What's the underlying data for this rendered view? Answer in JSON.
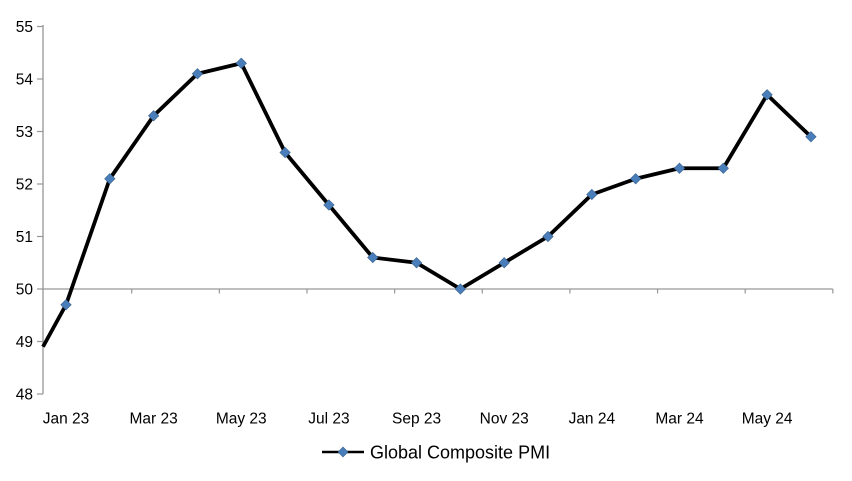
{
  "chart_data": {
    "type": "line",
    "title": "",
    "background": "#FFFFFF",
    "grid": "off",
    "legend": {
      "label": "Global Composite PMI",
      "position": "bottom-center",
      "marker_shape": "diamond",
      "marker_color": "#4A7EBB",
      "line_color": "#000000"
    },
    "x_axis": {
      "categories": [
        "Jan 23",
        "Feb 23",
        "Mar 23",
        "Apr 23",
        "May 23",
        "Jun 23",
        "Jul 23",
        "Aug 23",
        "Sep 23",
        "Oct 23",
        "Nov 23",
        "Dec 23",
        "Jan 24",
        "Feb 24",
        "Mar 24",
        "Apr 24",
        "May 24",
        "Jun 24"
      ],
      "shown_tick_labels": [
        "Jan 23",
        "Mar 23",
        "May 23",
        "Jul 23",
        "Sep 23",
        "Nov 23",
        "Jan 24",
        "Mar 24",
        "May 24"
      ],
      "label_every_n_categories": 2
    },
    "y_axis": {
      "min": 48,
      "max": 55,
      "step": 1,
      "tick_labels": [
        "48",
        "49",
        "50",
        "51",
        "52",
        "53",
        "54",
        "55"
      ]
    },
    "reference_line": {
      "value": 50,
      "note": "category axis drawn at value 50 with boundary tick marks every 2 months"
    },
    "series": [
      {
        "name": "Global Composite PMI",
        "values": [
          49.7,
          52.1,
          53.3,
          54.1,
          54.3,
          52.6,
          51.6,
          50.6,
          50.5,
          50.0,
          50.5,
          51.0,
          51.8,
          52.1,
          52.3,
          52.3,
          53.7,
          52.9
        ],
        "enters_left_edge_at_value": 48.9,
        "line_color": "#000000",
        "marker_shape": "diamond",
        "marker_color": "#4A7EBB"
      }
    ],
    "colors": {
      "axis": "#969696",
      "text": "#000000",
      "series_line": "#000000",
      "marker_fill": "#4A7EBB"
    }
  }
}
